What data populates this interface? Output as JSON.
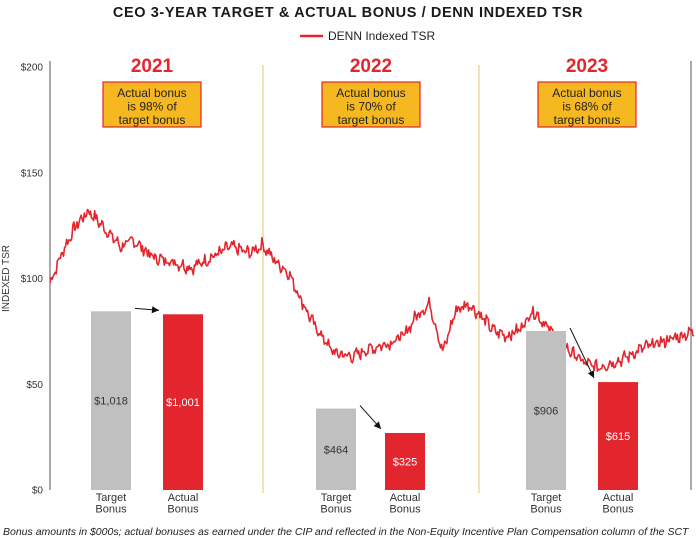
{
  "chart_data": {
    "type": "line+bar",
    "title": "CEO 3-YEAR TARGET & ACTUAL BONUS / DENN INDEXED TSR",
    "ylabel": "INDEXED TSR",
    "ylim": [
      0,
      200
    ],
    "yticks": [
      "$0",
      "$50",
      "$100",
      "$150",
      "$200"
    ],
    "legend": {
      "label": "DENN Indexed TSR",
      "color": "#e3262e",
      "position": "top-center"
    },
    "tsr_series": {
      "name": "DENN Indexed TSR",
      "t": [
        0,
        0.02,
        0.04,
        0.06,
        0.09,
        0.11,
        0.13,
        0.16,
        0.19,
        0.22,
        0.25,
        0.28,
        0.31,
        0.33,
        0.35,
        0.37,
        0.39,
        0.41,
        0.44,
        0.47,
        0.49,
        0.51,
        0.53,
        0.55,
        0.57,
        0.59,
        0.61,
        0.63,
        0.65,
        0.67,
        0.69,
        0.71,
        0.73,
        0.75,
        0.77,
        0.79,
        0.81,
        0.83,
        0.85,
        0.87,
        0.89,
        0.92,
        0.95,
        0.98,
        1.0
      ],
      "values": [
        98,
        113,
        125,
        132,
        122,
        115,
        118,
        110,
        108,
        105,
        110,
        115,
        112,
        116,
        108,
        103,
        90,
        78,
        65,
        63,
        66,
        68,
        70,
        73,
        83,
        88,
        65,
        85,
        88,
        82,
        75,
        73,
        76,
        85,
        78,
        70,
        65,
        60,
        58,
        60,
        62,
        67,
        70,
        73,
        75
      ]
    },
    "periods": [
      {
        "year": "2021",
        "note_lines": [
          "Actual bonus",
          "is 98% of",
          "target bonus"
        ],
        "target_bonus": 1018,
        "actual_bonus": 1001,
        "target_label": "$1,018",
        "actual_label": "$1,001"
      },
      {
        "year": "2022",
        "note_lines": [
          "Actual bonus",
          "is 70% of",
          "target bonus"
        ],
        "target_bonus": 464,
        "actual_bonus": 325,
        "target_label": "$464",
        "actual_label": "$325"
      },
      {
        "year": "2023",
        "note_lines": [
          "Actual bonus",
          "is 68% of",
          "target bonus"
        ],
        "target_bonus": 906,
        "actual_bonus": 615,
        "target_label": "$906",
        "actual_label": "$615"
      }
    ],
    "bar_category_lines": {
      "target": [
        "Target",
        "Bonus"
      ],
      "actual": [
        "Actual",
        "Bonus"
      ]
    },
    "bar_scale_max": 2410,
    "colors": {
      "target": "#c0c0c0",
      "actual": "#e3262e",
      "line": "#e3262e",
      "note_fill": "#f5b820",
      "note_border": "#e3262e",
      "divider": "#e8c46a"
    }
  },
  "footnote": "Bonus amounts in $000s; actual bonuses as earned under the CIP and reflected in the Non-Equity Incentive Plan Compensation column of the SCT"
}
